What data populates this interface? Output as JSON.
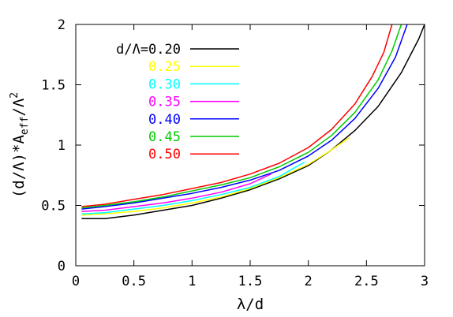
{
  "chart_data": {
    "type": "line",
    "xlabel_main": "λ/d",
    "ylabel_parts": {
      "prefix": "(d/Λ)*A",
      "subscript": "eff",
      "mid": "/Λ",
      "superscript": "2"
    },
    "xlim": [
      0,
      3
    ],
    "ylim": [
      0,
      2
    ],
    "x_ticks": [
      {
        "value": 0,
        "label": "0"
      },
      {
        "value": 0.5,
        "label": "0.5"
      },
      {
        "value": 1,
        "label": "1"
      },
      {
        "value": 1.5,
        "label": "1.5"
      },
      {
        "value": 2,
        "label": "2"
      },
      {
        "value": 2.5,
        "label": "2.5"
      },
      {
        "value": 3,
        "label": "3"
      }
    ],
    "y_ticks": [
      {
        "value": 0,
        "label": "0"
      },
      {
        "value": 0.5,
        "label": "0.5"
      },
      {
        "value": 1,
        "label": "1"
      },
      {
        "value": 1.5,
        "label": "1.5"
      },
      {
        "value": 2,
        "label": "2"
      }
    ],
    "grid": false,
    "legend_position": "top-left",
    "series": [
      {
        "name": "d/Λ=0.20",
        "color": "#000000",
        "x": [
          0.05,
          0.25,
          0.5,
          0.75,
          1.0,
          1.25,
          1.5,
          1.75,
          2.0,
          2.2,
          2.4,
          2.6,
          2.8,
          2.95,
          3.0
        ],
        "y": [
          0.39,
          0.39,
          0.42,
          0.46,
          0.5,
          0.56,
          0.63,
          0.72,
          0.83,
          0.96,
          1.12,
          1.32,
          1.6,
          1.88,
          2.0
        ]
      },
      {
        "name": "0.25",
        "color": "#ffff00",
        "x": [
          0.05,
          0.25,
          0.5,
          0.75,
          1.0,
          1.25,
          1.5,
          1.75,
          2.0,
          2.2,
          2.35
        ],
        "y": [
          0.42,
          0.43,
          0.45,
          0.48,
          0.52,
          0.57,
          0.64,
          0.73,
          0.84,
          0.96,
          1.06
        ]
      },
      {
        "name": "0.30",
        "color": "#00ffff",
        "x": [
          0.05,
          0.25,
          0.5,
          0.75,
          1.0,
          1.25,
          1.5,
          1.75,
          1.97
        ],
        "y": [
          0.43,
          0.44,
          0.47,
          0.5,
          0.54,
          0.59,
          0.65,
          0.74,
          0.86
        ]
      },
      {
        "name": "0.35",
        "color": "#ff00ff",
        "x": [
          0.05,
          0.25,
          0.5,
          0.75,
          1.0,
          1.25,
          1.5,
          1.68
        ],
        "y": [
          0.45,
          0.46,
          0.49,
          0.52,
          0.56,
          0.61,
          0.68,
          0.76
        ]
      },
      {
        "name": "0.40",
        "color": "#0000ff",
        "x": [
          0.05,
          0.25,
          0.5,
          0.75,
          1.0,
          1.25,
          1.5,
          1.75,
          2.0,
          2.2,
          2.4,
          2.6,
          2.75,
          2.85
        ],
        "y": [
          0.47,
          0.49,
          0.52,
          0.56,
          0.6,
          0.65,
          0.71,
          0.79,
          0.91,
          1.04,
          1.22,
          1.47,
          1.73,
          2.0
        ]
      },
      {
        "name": "0.45",
        "color": "#00cc00",
        "x": [
          0.05,
          0.25,
          0.5,
          0.75,
          1.0,
          1.25,
          1.5,
          1.75,
          2.0,
          2.2,
          2.4,
          2.6,
          2.72,
          2.8
        ],
        "y": [
          0.48,
          0.5,
          0.53,
          0.57,
          0.62,
          0.67,
          0.73,
          0.82,
          0.94,
          1.08,
          1.27,
          1.54,
          1.78,
          2.0
        ]
      },
      {
        "name": "0.50",
        "color": "#ff0000",
        "x": [
          0.05,
          0.25,
          0.5,
          0.75,
          1.0,
          1.25,
          1.5,
          1.75,
          2.0,
          2.2,
          2.4,
          2.55,
          2.65,
          2.72
        ],
        "y": [
          0.49,
          0.51,
          0.55,
          0.59,
          0.64,
          0.69,
          0.76,
          0.85,
          0.98,
          1.13,
          1.34,
          1.57,
          1.77,
          2.0
        ]
      }
    ]
  }
}
